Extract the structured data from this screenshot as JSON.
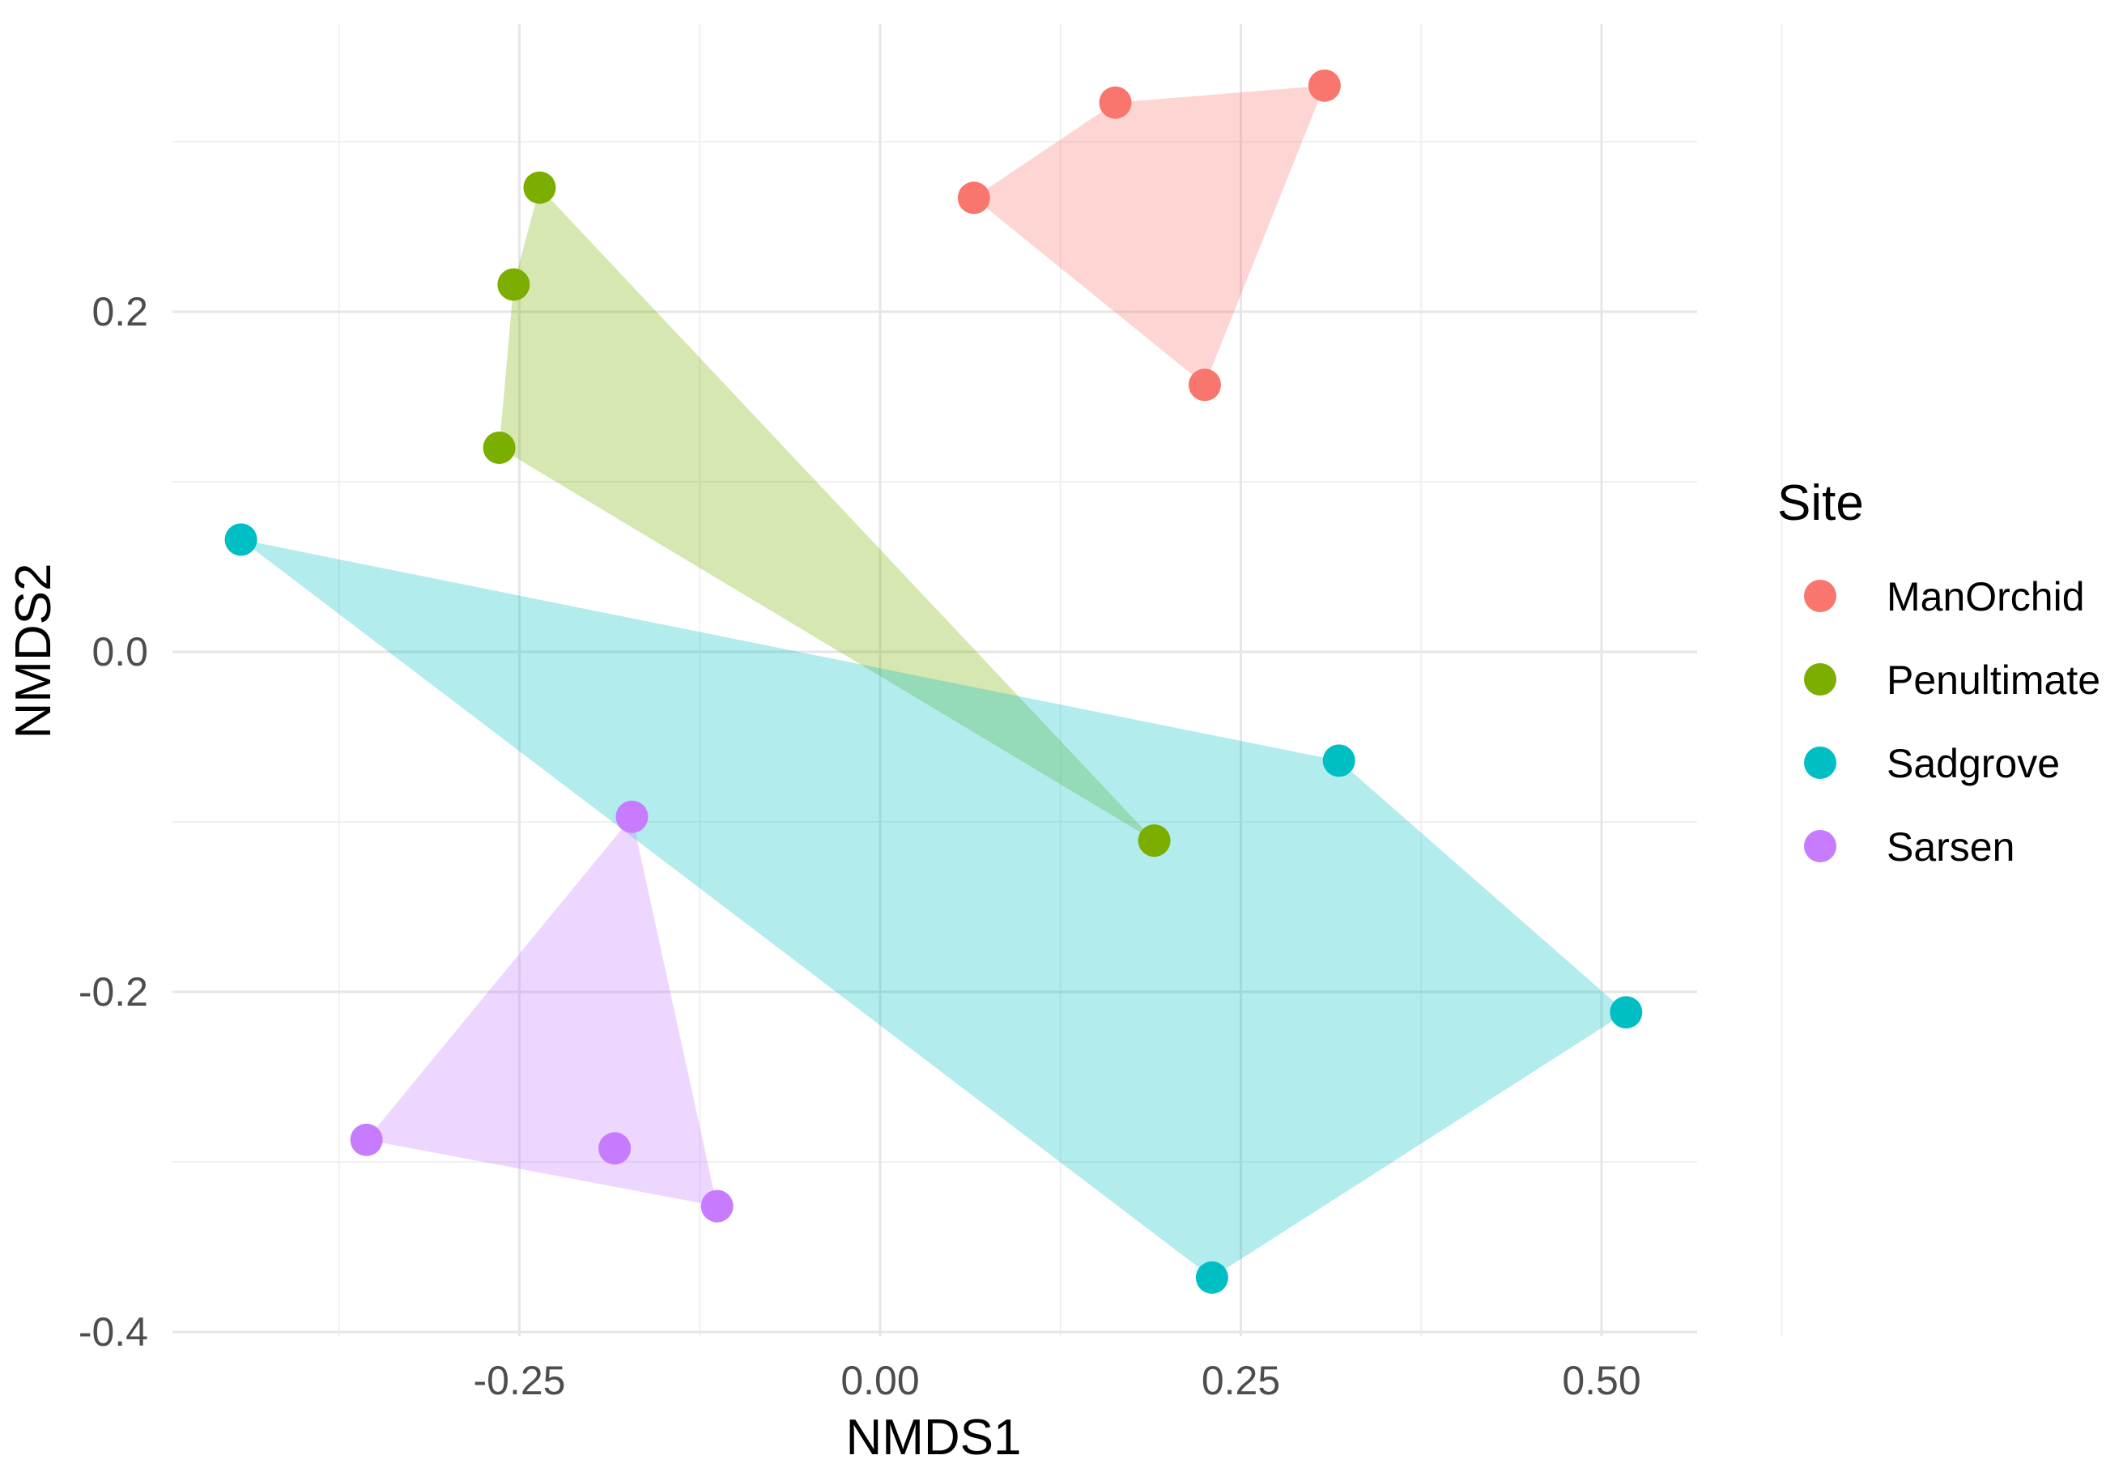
{
  "chart_data": {
    "type": "scatter",
    "title": "",
    "xlabel": "NMDS1",
    "ylabel": "NMDS2",
    "xlim": [
      -0.46,
      0.56
    ],
    "ylim": [
      -0.4,
      0.34
    ],
    "x_ticks": [
      -0.25,
      0.0,
      0.25,
      0.5
    ],
    "x_tick_labels": [
      "-0.25",
      "0.00",
      "0.25",
      "0.50"
    ],
    "y_ticks": [
      -0.4,
      -0.2,
      0.0,
      0.2
    ],
    "y_tick_labels": [
      "-0.4",
      "-0.2",
      "0.0",
      "0.2"
    ],
    "grid": true,
    "legend": {
      "title": "Site",
      "position": "right"
    },
    "hulls": true,
    "series": [
      {
        "name": "ManOrchid",
        "color": "#F8766D",
        "points": [
          {
            "x": 0.065,
            "y": 0.267
          },
          {
            "x": 0.163,
            "y": 0.323
          },
          {
            "x": 0.308,
            "y": 0.333
          },
          {
            "x": 0.225,
            "y": 0.157
          }
        ]
      },
      {
        "name": "Penultimate",
        "color": "#7CAE00",
        "points": [
          {
            "x": -0.236,
            "y": 0.273
          },
          {
            "x": -0.254,
            "y": 0.216
          },
          {
            "x": -0.264,
            "y": 0.12
          },
          {
            "x": 0.19,
            "y": -0.111
          }
        ]
      },
      {
        "name": "Sadgrove",
        "color": "#00BFC4",
        "points": [
          {
            "x": -0.443,
            "y": 0.066
          },
          {
            "x": 0.318,
            "y": -0.064
          },
          {
            "x": 0.517,
            "y": -0.212
          },
          {
            "x": 0.23,
            "y": -0.368
          }
        ]
      },
      {
        "name": "Sarsen",
        "color": "#C77CFF",
        "points": [
          {
            "x": -0.172,
            "y": -0.097
          },
          {
            "x": -0.356,
            "y": -0.287
          },
          {
            "x": -0.184,
            "y": -0.292
          },
          {
            "x": -0.113,
            "y": -0.326
          }
        ]
      }
    ]
  }
}
